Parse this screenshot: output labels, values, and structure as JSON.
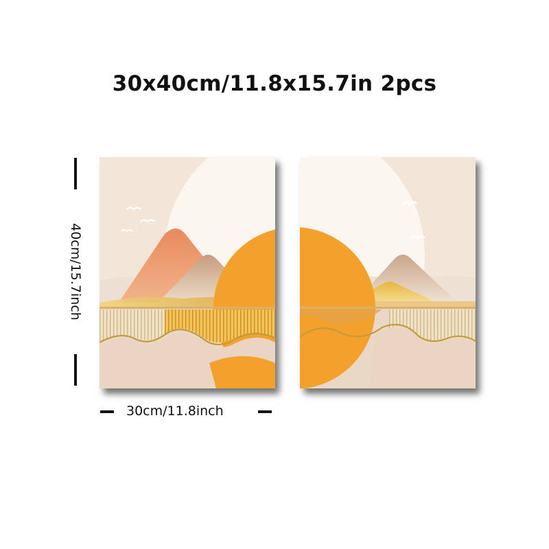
{
  "title": "30x40cm/11.8x15.7in 2pcs",
  "dimensions": {
    "height_label": "40cm/15.7inch",
    "width_label": "30cm/11.8inch"
  },
  "panels": [
    {
      "name": "left",
      "scene": "sun-and-mountains-left-half"
    },
    {
      "name": "right",
      "scene": "sun-and-mountains-right-half"
    }
  ],
  "colors": {
    "background": "#f3e5d8",
    "sun": "#fbf6f0",
    "orange": "#f4a12c",
    "peach_mountain": "#ec9a6d",
    "gold": "#c49a3c",
    "tree_foliage": "#f2a92a"
  },
  "icons": [
    "bird-icon",
    "tree-icon",
    "mountain-icon",
    "sun-icon"
  ]
}
